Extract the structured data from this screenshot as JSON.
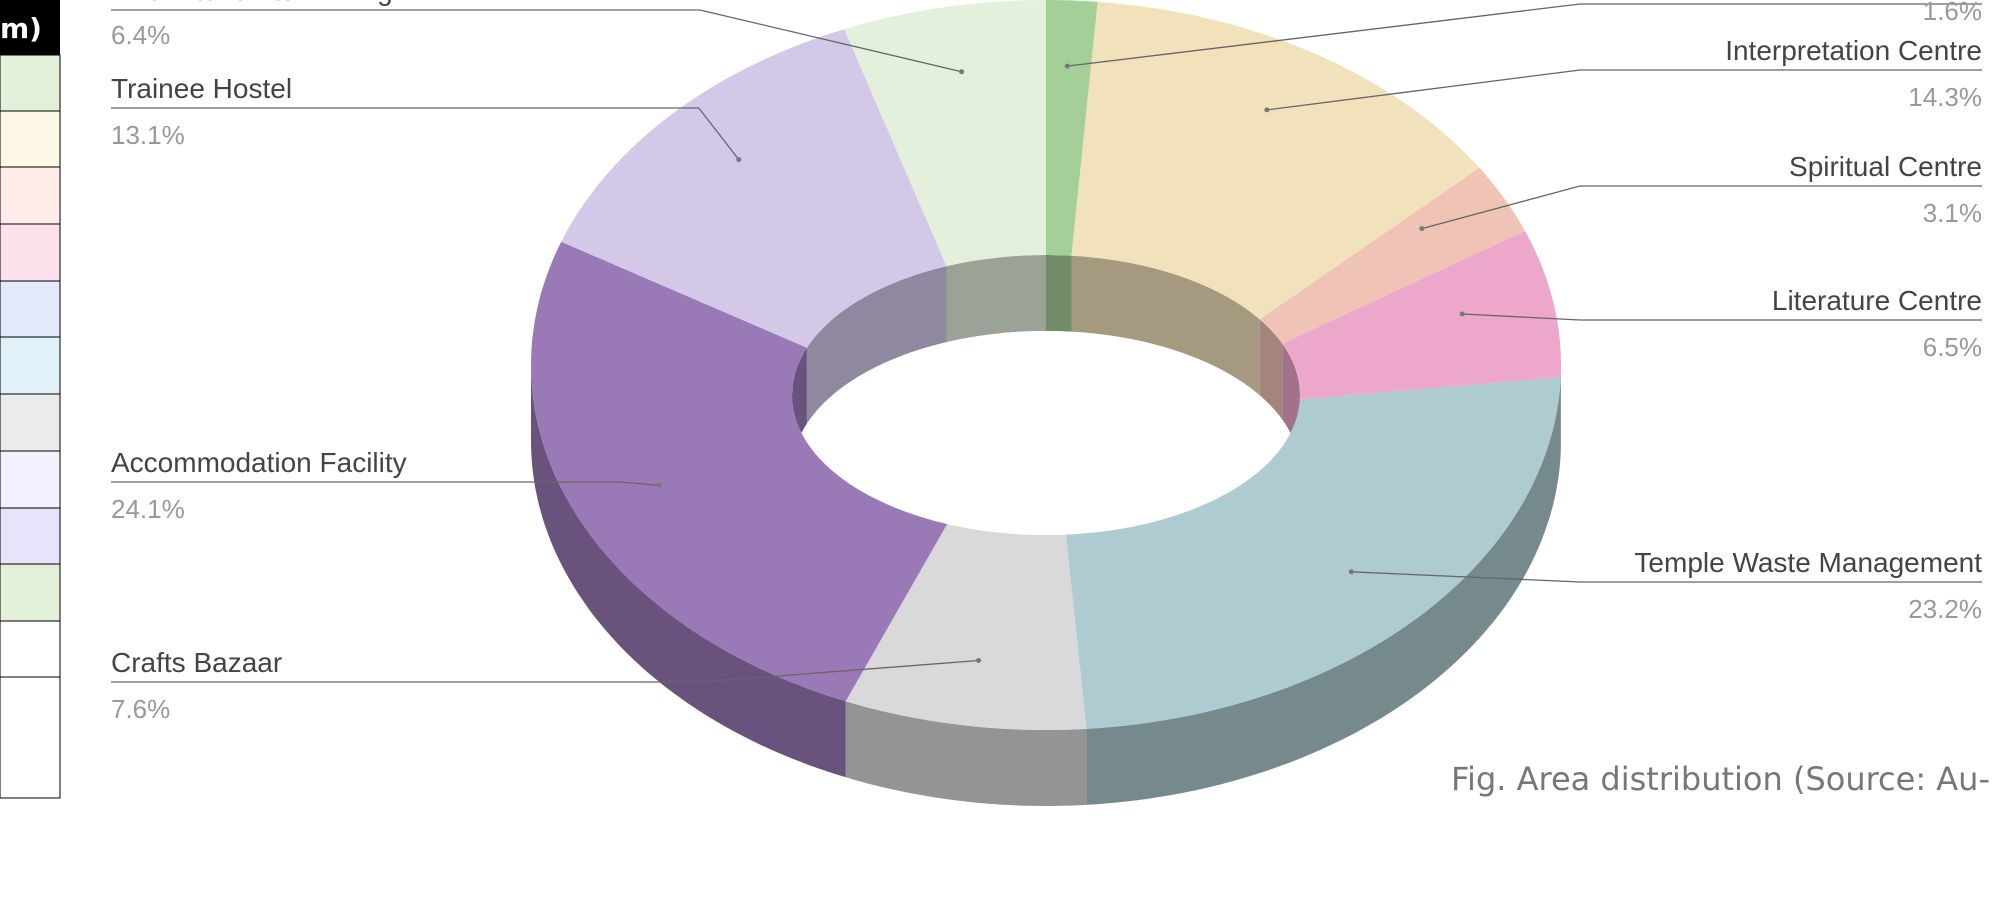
{
  "table": {
    "header": "m)"
  },
  "chart_data": {
    "type": "donut3d",
    "categories": [
      null,
      "Interpretation Centre",
      "Spiritual Centre",
      "Literature Centre",
      "Temple Waste Management",
      "Crafts Bazaar",
      "Accommodation Facility",
      "Trainee Hostel",
      "Live Kitchen & Dinning"
    ],
    "values": [
      1.6,
      14.3,
      3.1,
      6.5,
      23.2,
      7.6,
      24.1,
      13.1,
      6.4
    ],
    "value_labels": [
      "1.6%",
      "14.3%",
      "3.1%",
      "6.5%",
      "23.2%",
      "7.6%",
      "24.1%",
      "13.1%",
      "6.4%"
    ],
    "colors": [
      "#a5cf98",
      "#f2e2bb",
      "#efc3b5",
      "#eda7ca",
      "#aecbd1",
      "#d9d9d9",
      "#9a7ab6",
      "#d4c8e8",
      "#e3f0dc"
    ]
  },
  "caption": "Fig. Area distribution (Source: Au-"
}
